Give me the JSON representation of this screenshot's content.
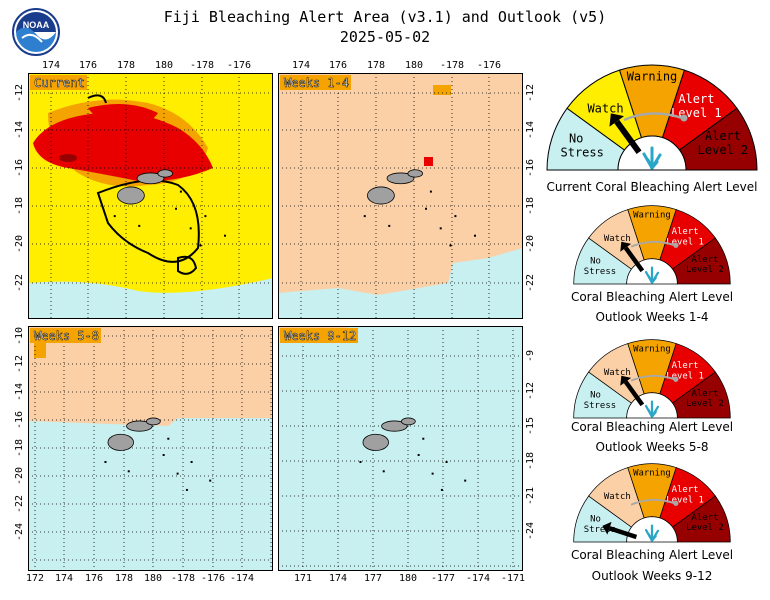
{
  "header": {
    "title": "Fiji Bleaching Alert Area (v3.1) and Outlook (v5)",
    "date": "2025-05-02",
    "logo_text": "NOAA"
  },
  "colors": {
    "no_stress": "#c8f0f0",
    "watch": "#ffee00",
    "warning": "#f4a300",
    "alert1": "#e80000",
    "alert2": "#960000",
    "outlook_watch": "#fcd0a6",
    "land": "#a0a0a0"
  },
  "maps": [
    {
      "id": "current",
      "label": "Current",
      "top_ticks": [
        "174",
        "176",
        "178",
        "180",
        "-178",
        "-176"
      ],
      "left_ticks": [
        "-12",
        "-14",
        "-16",
        "-18",
        "-20",
        "-22"
      ]
    },
    {
      "id": "weeks-1-4",
      "label": "Weeks 1-4",
      "top_ticks": [
        "174",
        "176",
        "178",
        "180",
        "-178",
        "-176"
      ],
      "right_ticks": [
        "-12",
        "-14",
        "-16",
        "-18",
        "-20",
        "-22"
      ]
    },
    {
      "id": "weeks-5-8",
      "label": "Weeks 5-8",
      "left_ticks": [
        "-10",
        "-12",
        "-14",
        "-16",
        "-18",
        "-20",
        "-22",
        "-24"
      ],
      "bottom_ticks": [
        "172",
        "174",
        "176",
        "178",
        "180",
        "-178",
        "-176",
        "-174"
      ]
    },
    {
      "id": "weeks-9-12",
      "label": "Weeks 9-12",
      "right_ticks": [
        "-9",
        "-12",
        "-15",
        "-18",
        "-21",
        "-24"
      ],
      "bottom_ticks": [
        "171",
        "174",
        "177",
        "180",
        "-177",
        "-174",
        "-171"
      ]
    }
  ],
  "gauges": [
    {
      "id": "current",
      "level": "Watch",
      "caption1": "Current Coral Bleaching Alert Level",
      "caption2": ""
    },
    {
      "id": "weeks-1-4",
      "level": "Watch",
      "caption1": "Coral Bleaching Alert Level",
      "caption2": "Outlook Weeks 1-4"
    },
    {
      "id": "weeks-5-8",
      "level": "Watch",
      "caption1": "Coral Bleaching Alert Level",
      "caption2": "Outlook Weeks 5-8"
    },
    {
      "id": "weeks-9-12",
      "level": "No Stress",
      "caption1": "Coral Bleaching Alert Level",
      "caption2": "Outlook Weeks 9-12"
    }
  ],
  "gauge_labels": {
    "no_stress": [
      "No",
      "Stress"
    ],
    "watch": "Watch",
    "warning": "Warning",
    "alert1": [
      "Alert",
      "Level 1"
    ],
    "alert2": [
      "Alert",
      "Level 2"
    ]
  }
}
